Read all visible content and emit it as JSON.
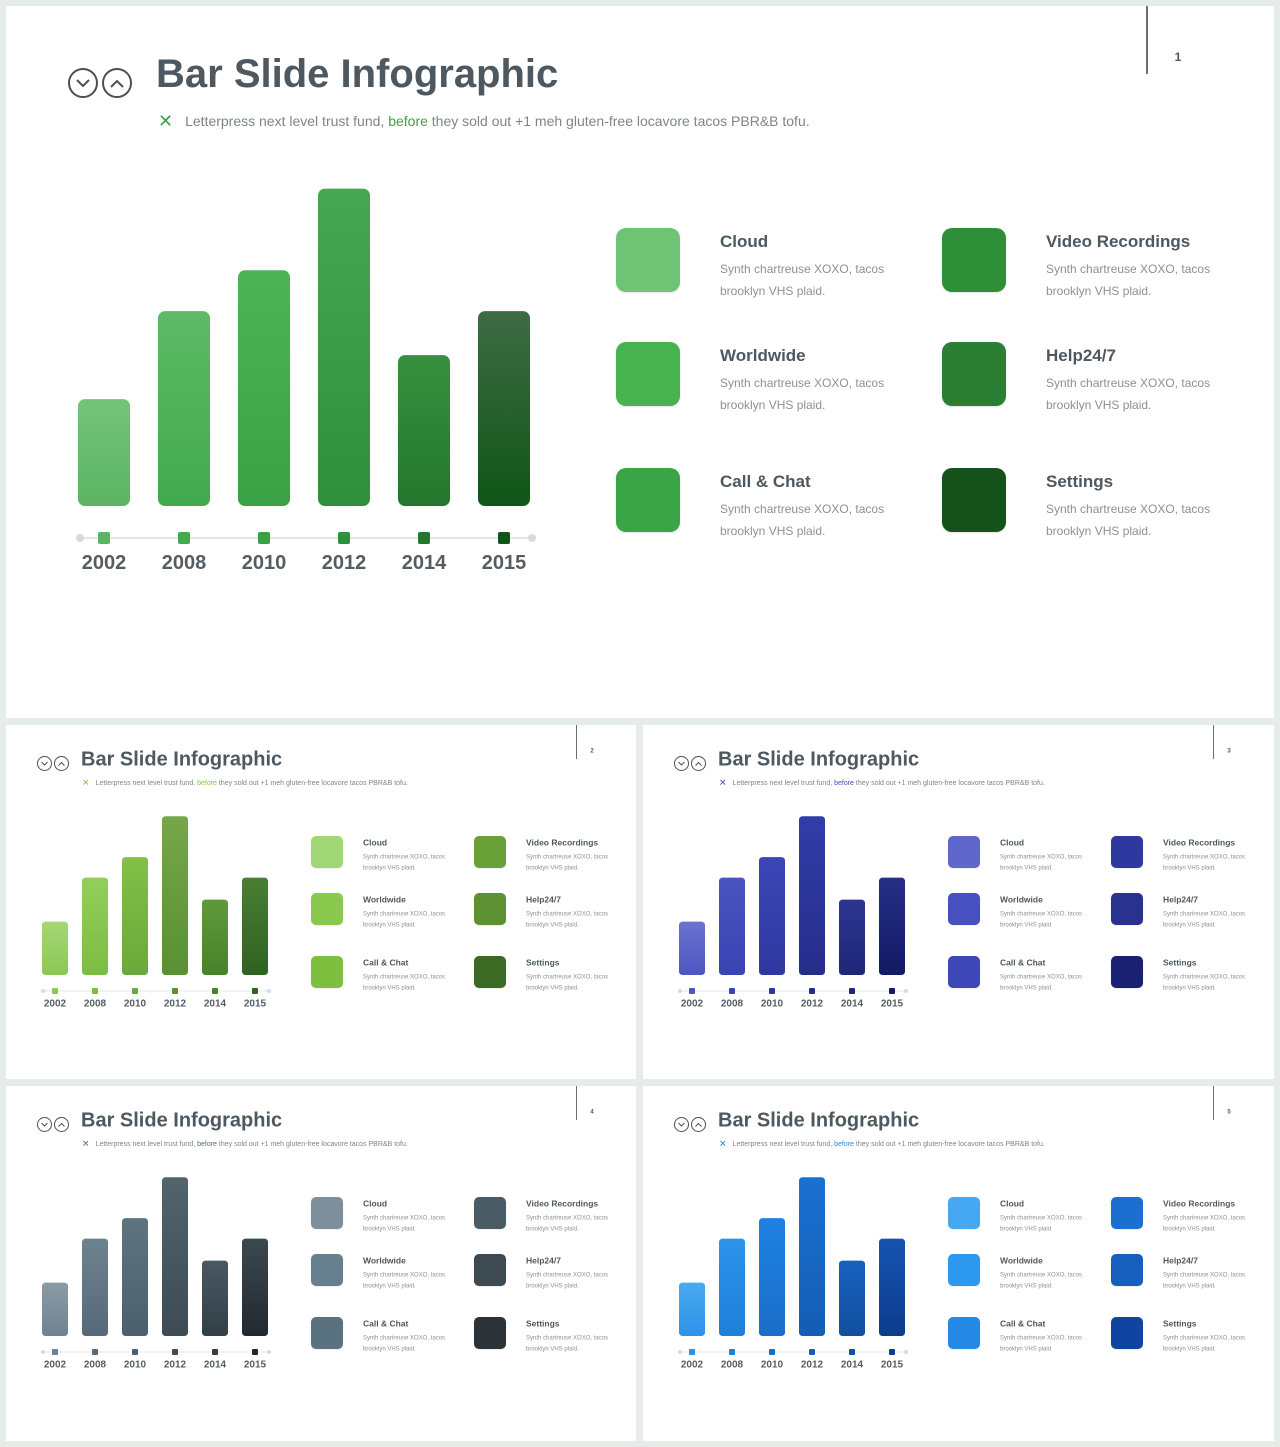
{
  "title": "Bar Slide Infographic",
  "subtitle_pre": "Letterpress next level trust fund,",
  "subtitle_hl": "before",
  "subtitle_post": "they sold out +1 meh gluten-free locavore tacos PBR&B tofu.",
  "chart_data": {
    "type": "bar",
    "categories": [
      "2002",
      "2008",
      "2010",
      "2012",
      "2014",
      "2015"
    ],
    "values": [
      34,
      62,
      75,
      101,
      48,
      62
    ],
    "ylim": [
      0,
      105
    ],
    "xlabel": "",
    "ylabel": ""
  },
  "legend": [
    {
      "title": "Cloud",
      "desc": "Synth chartreuse XOXO, tacos brooklyn VHS plaid."
    },
    {
      "title": "Video Recordings",
      "desc": "Synth chartreuse XOXO, tacos brooklyn VHS plaid."
    },
    {
      "title": "Worldwide",
      "desc": "Synth chartreuse XOXO, tacos brooklyn VHS plaid."
    },
    {
      "title": "Help24/7",
      "desc": "Synth chartreuse XOXO, tacos brooklyn VHS plaid."
    },
    {
      "title": "Call & Chat",
      "desc": "Synth chartreuse XOXO, tacos brooklyn VHS plaid."
    },
    {
      "title": "Settings",
      "desc": "Synth chartreuse XOXO, tacos brooklyn VHS plaid."
    }
  ],
  "slides": [
    {
      "page": "1",
      "accent": "#3fa14a",
      "bars": [
        [
          "#74c37a",
          "#5bb463"
        ],
        [
          "#5dba66",
          "#43a94d"
        ],
        [
          "#4cb457",
          "#3aa144"
        ],
        [
          "#47a752",
          "#2f8f3a"
        ],
        [
          "#36903f",
          "#23772c"
        ],
        [
          "#3f6b45",
          "#0f5516"
        ]
      ],
      "legend_colors": [
        "#6ec374",
        "#2f8f39",
        "#46b350",
        "#2a7f34",
        "#3aa545",
        "#14511b"
      ]
    },
    {
      "page": "2",
      "accent": "#8bc34a",
      "bars": [
        [
          "#a5d874",
          "#8bc755"
        ],
        [
          "#93cf5a",
          "#7bbd43"
        ],
        [
          "#82c048",
          "#6aa93b"
        ],
        [
          "#76a84a",
          "#5a8f33"
        ],
        [
          "#5f9a3c",
          "#48822a"
        ],
        [
          "#4a7f33",
          "#2f6220"
        ]
      ],
      "legend_colors": [
        "#a1d775",
        "#6aa038",
        "#8bc84e",
        "#5d9032",
        "#7fbf3f",
        "#3b6a25"
      ]
    },
    {
      "page": "3",
      "accent": "#3f4cc0",
      "bars": [
        [
          "#6b73cf",
          "#4c56c0"
        ],
        [
          "#4a54c0",
          "#3a43b2"
        ],
        [
          "#3c46b6",
          "#2f389f"
        ],
        [
          "#333da8",
          "#252d8a"
        ],
        [
          "#2c3592",
          "#1f2677"
        ],
        [
          "#262e86",
          "#131a66"
        ]
      ],
      "legend_colors": [
        "#5f68ca",
        "#2f389f",
        "#4650c0",
        "#2a3290",
        "#3e48b8",
        "#1a2172"
      ]
    },
    {
      "page": "4",
      "accent": "#546e7a",
      "bars": [
        [
          "#8a9ba5",
          "#6f8390"
        ],
        [
          "#6d828f",
          "#57697a"
        ],
        [
          "#5f7381",
          "#4c5f6d"
        ],
        [
          "#53646f",
          "#3c4b55"
        ],
        [
          "#4a5862",
          "#333f47"
        ],
        [
          "#3c4850",
          "#22292e"
        ]
      ],
      "legend_colors": [
        "#7c8f9b",
        "#4a5b66",
        "#66808f",
        "#3d4a52",
        "#5a717f",
        "#2b3338"
      ]
    },
    {
      "page": "5",
      "accent": "#1e88e5",
      "bars": [
        [
          "#4aaaf0",
          "#2d93e8"
        ],
        [
          "#2c93eb",
          "#1f7fd9"
        ],
        [
          "#1f82e2",
          "#196ec8"
        ],
        [
          "#1a71d2",
          "#145db3"
        ],
        [
          "#1661c0",
          "#114f9f"
        ],
        [
          "#1553b0",
          "#0d3c8c"
        ]
      ],
      "legend_colors": [
        "#46a8f2",
        "#1a6fd0",
        "#2c98ee",
        "#175fbd",
        "#2388e6",
        "#0f45a0"
      ]
    }
  ]
}
